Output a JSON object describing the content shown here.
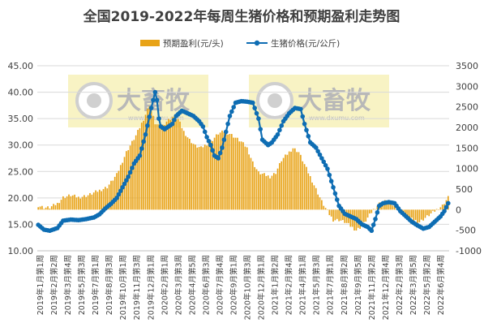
{
  "chart_data": {
    "type": "bar+line",
    "title": "全国2019-2022年每周生猪价格和预期盈利走势图",
    "legend": [
      "预期盈利(元/头)",
      "生猪价格(元/公斤)"
    ],
    "legend_position": "top",
    "y_left": {
      "min": 10,
      "max": 45,
      "step": 5,
      "ticks": [
        "10.00",
        "15.00",
        "20.00",
        "25.00",
        "30.00",
        "35.00",
        "40.00",
        "45.00"
      ]
    },
    "y_right": {
      "min": -1000,
      "max": 3500,
      "step": 500,
      "ticks": [
        "-1000",
        "-500",
        "0",
        "500",
        "1000",
        "1500",
        "2000",
        "2500",
        "3000",
        "3500"
      ]
    },
    "x_tick_labels": [
      "2019年1月第1周",
      "2019年2月第2周",
      "2019年3月第4周",
      "2019年5月第3周",
      "2019年7月第1周",
      "2019年8月第3周",
      "2019年10月第1周",
      "2019年11月第3周",
      "2019年12月第1周",
      "2020年2月第1周",
      "2020年3月第3周",
      "2020年4月第5周",
      "2020年6月第3周",
      "2020年7月第4周",
      "2020年9月第1周",
      "2020年10月第3周",
      "2020年12月第1周",
      "2021年1月第2周",
      "2021年2月第4周",
      "2021年4月第1周",
      "2021年5月第3周",
      "2021年7月第1周",
      "2021年8月第2周",
      "2021年9月第5周",
      "2021年11月第2周",
      "2021年12月第4周",
      "2022年2月第3周",
      "2022年3月第5周",
      "2022年5月第2周",
      "2022年6月第4周"
    ],
    "series": [
      {
        "name": "预期盈利(元/头)",
        "axis": "right",
        "type": "bar",
        "color": "#e8a317",
        "keypoints": [
          [
            0,
            100
          ],
          [
            3,
            50
          ],
          [
            6,
            50
          ],
          [
            10,
            150
          ],
          [
            13,
            300
          ],
          [
            17,
            350
          ],
          [
            21,
            300
          ],
          [
            26,
            350
          ],
          [
            31,
            450
          ],
          [
            36,
            550
          ],
          [
            41,
            850
          ],
          [
            46,
            1400
          ],
          [
            51,
            1800
          ],
          [
            55,
            2200
          ],
          [
            58,
            2550
          ],
          [
            61,
            2100
          ],
          [
            64,
            2000
          ],
          [
            67,
            2150
          ],
          [
            70,
            2250
          ],
          [
            73,
            2200
          ],
          [
            76,
            1900
          ],
          [
            79,
            1700
          ],
          [
            82,
            1550
          ],
          [
            85,
            1500
          ],
          [
            88,
            1600
          ],
          [
            91,
            1700
          ],
          [
            94,
            1850
          ],
          [
            97,
            1900
          ],
          [
            100,
            1850
          ],
          [
            103,
            1750
          ],
          [
            106,
            1650
          ],
          [
            109,
            1500
          ],
          [
            112,
            1150
          ],
          [
            115,
            900
          ],
          [
            118,
            850
          ],
          [
            121,
            800
          ],
          [
            124,
            900
          ],
          [
            127,
            1200
          ],
          [
            130,
            1350
          ],
          [
            133,
            1500
          ],
          [
            136,
            1400
          ],
          [
            139,
            1100
          ],
          [
            142,
            800
          ],
          [
            145,
            500
          ],
          [
            148,
            200
          ],
          [
            151,
            -50
          ],
          [
            154,
            -250
          ],
          [
            157,
            -250
          ],
          [
            160,
            -300
          ],
          [
            163,
            -400
          ],
          [
            166,
            -500
          ],
          [
            169,
            -400
          ],
          [
            172,
            -200
          ],
          [
            175,
            0
          ],
          [
            178,
            150
          ],
          [
            181,
            200
          ],
          [
            184,
            150
          ],
          [
            187,
            50
          ],
          [
            190,
            -50
          ],
          [
            193,
            -200
          ],
          [
            196,
            -250
          ],
          [
            199,
            -300
          ],
          [
            202,
            -200
          ],
          [
            205,
            -100
          ],
          [
            208,
            0
          ],
          [
            211,
            100
          ],
          [
            214,
            300
          ]
        ]
      },
      {
        "name": "生猪价格(元/公斤)",
        "axis": "left",
        "type": "line",
        "color": "#0e6db3",
        "keypoints": [
          [
            0,
            14.9
          ],
          [
            3,
            14.0
          ],
          [
            6,
            13.8
          ],
          [
            10,
            14.3
          ],
          [
            13,
            15.7
          ],
          [
            17,
            15.9
          ],
          [
            21,
            15.8
          ],
          [
            25,
            16.0
          ],
          [
            29,
            16.3
          ],
          [
            32,
            16.9
          ],
          [
            35,
            18.0
          ],
          [
            38,
            18.9
          ],
          [
            41,
            20.0
          ],
          [
            44,
            22.0
          ],
          [
            47,
            24.0
          ],
          [
            50,
            26.5
          ],
          [
            53,
            28.0
          ],
          [
            56,
            32.0
          ],
          [
            59,
            37.0
          ],
          [
            61,
            40.0
          ],
          [
            62,
            38.5
          ],
          [
            63,
            35.0
          ],
          [
            64,
            33.5
          ],
          [
            66,
            33.0
          ],
          [
            68,
            33.5
          ],
          [
            70,
            34.0
          ],
          [
            72,
            35.5
          ],
          [
            75,
            36.5
          ],
          [
            78,
            36.0
          ],
          [
            81,
            35.5
          ],
          [
            84,
            34.5
          ],
          [
            86,
            33.5
          ],
          [
            88,
            31.5
          ],
          [
            90,
            30.0
          ],
          [
            92,
            28.0
          ],
          [
            94,
            27.5
          ],
          [
            96,
            29.5
          ],
          [
            98,
            32.5
          ],
          [
            100,
            35.5
          ],
          [
            103,
            38.0
          ],
          [
            106,
            38.3
          ],
          [
            109,
            38.2
          ],
          [
            112,
            38.0
          ],
          [
            115,
            35.0
          ],
          [
            117,
            31.0
          ],
          [
            120,
            30.0
          ],
          [
            122,
            30.5
          ],
          [
            125,
            32.0
          ],
          [
            128,
            34.5
          ],
          [
            131,
            36.0
          ],
          [
            134,
            37.0
          ],
          [
            137,
            36.8
          ],
          [
            139,
            34.0
          ],
          [
            142,
            30.5
          ],
          [
            145,
            29.5
          ],
          [
            148,
            27.5
          ],
          [
            151,
            25.5
          ],
          [
            154,
            22.0
          ],
          [
            157,
            18.5
          ],
          [
            160,
            17.0
          ],
          [
            163,
            16.5
          ],
          [
            166,
            16.0
          ],
          [
            169,
            15.0
          ],
          [
            172,
            14.5
          ],
          [
            174,
            13.8
          ],
          [
            176,
            16.0
          ],
          [
            178,
            18.5
          ],
          [
            180,
            19.0
          ],
          [
            183,
            19.2
          ],
          [
            186,
            19.0
          ],
          [
            189,
            17.5
          ],
          [
            192,
            16.5
          ],
          [
            195,
            15.5
          ],
          [
            198,
            14.8
          ],
          [
            201,
            14.2
          ],
          [
            204,
            14.5
          ],
          [
            207,
            15.5
          ],
          [
            210,
            16.5
          ],
          [
            212,
            17.5
          ],
          [
            214,
            19.0
          ]
        ]
      }
    ],
    "watermark": {
      "brand": "大畜牧",
      "site": "www.dxumu.com"
    }
  }
}
